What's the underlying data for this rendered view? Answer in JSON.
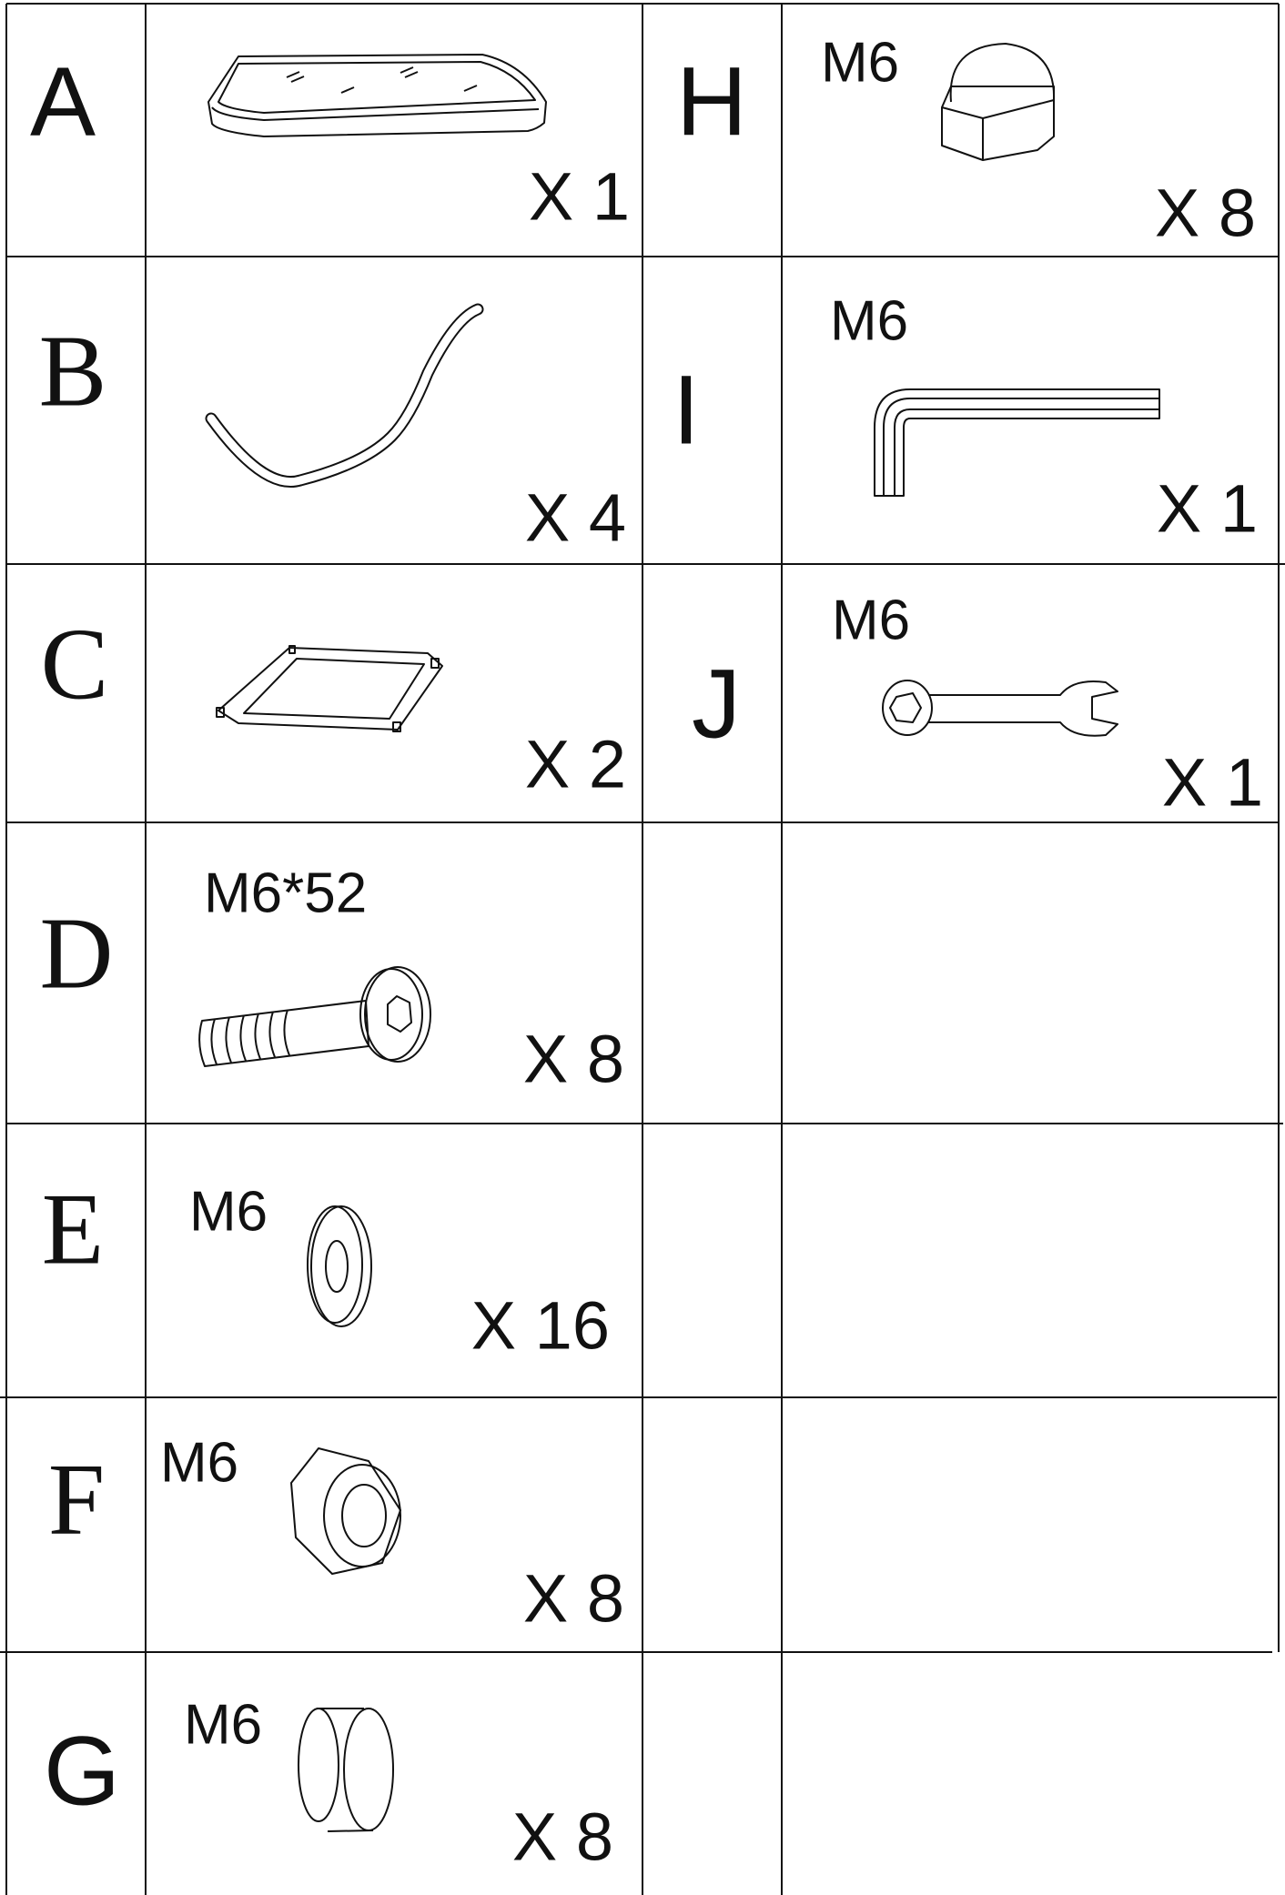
{
  "parts": [
    {
      "letter": "A",
      "quantity": "X 1"
    },
    {
      "letter": "B",
      "quantity": "X 4"
    },
    {
      "letter": "C",
      "quantity": "X 2"
    },
    {
      "letter": "D",
      "spec": "M6*52",
      "quantity": "X 8"
    },
    {
      "letter": "E",
      "spec": "M6",
      "quantity": "X 16"
    },
    {
      "letter": "F",
      "spec": "M6",
      "quantity": "X 8"
    },
    {
      "letter": "G",
      "spec": "M6",
      "quantity": "X 8"
    },
    {
      "letter": "H",
      "spec": "M6",
      "quantity": "X 8"
    },
    {
      "letter": "I",
      "spec": "M6",
      "quantity": "X 1"
    },
    {
      "letter": "J",
      "spec": "M6",
      "quantity": "X 1"
    }
  ]
}
